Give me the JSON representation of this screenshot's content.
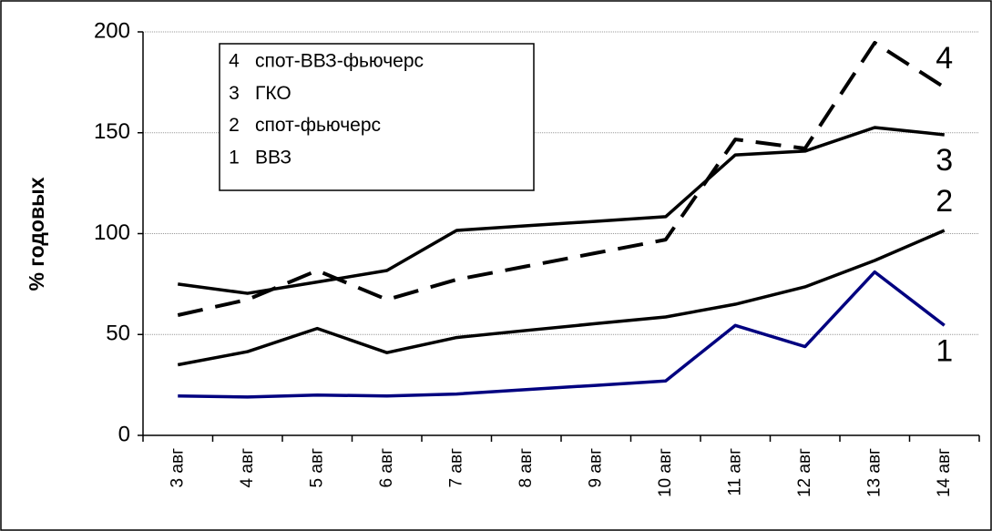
{
  "chart_data": {
    "type": "line",
    "ylabel": "% годовых",
    "categories": [
      "3 авг",
      "4 авг",
      "5 авг",
      "6 авг",
      "7 авг",
      "8 авг",
      "9 авг",
      "10 авг",
      "11 авг",
      "12 авг",
      "13 авг",
      "14 авг"
    ],
    "series": [
      {
        "label": "1",
        "name": "ВВЗ",
        "color": "#000080",
        "dashed": false,
        "values": [
          19.5,
          19,
          20,
          19.5,
          20.5,
          22.7,
          24.8,
          27,
          54.5,
          44,
          81,
          54.5
        ]
      },
      {
        "label": "2",
        "name": "спот-фьючерс",
        "color": "#000000",
        "dashed": false,
        "values": [
          35,
          41.5,
          53,
          41,
          48.5,
          52,
          55.4,
          58.7,
          65,
          73.6,
          86.7,
          101.6
        ]
      },
      {
        "label": "3",
        "name": "ГКО",
        "color": "#000000",
        "dashed": false,
        "values": [
          75,
          70.4,
          76,
          81.7,
          101.6,
          103.9,
          106.1,
          108.4,
          139,
          140.9,
          152.6,
          149
        ]
      },
      {
        "label": "4",
        "name": "спот-ВВЗ-фьючерс",
        "color": "#000000",
        "dashed": true,
        "values": [
          59.6,
          67.3,
          81.7,
          67.3,
          77.2,
          83.8,
          90.4,
          97,
          146.7,
          142.2,
          194.6,
          172.5
        ]
      }
    ],
    "ylim": [
      0,
      200
    ],
    "yticks": [
      0,
      50,
      100,
      150,
      200
    ],
    "grid": true
  }
}
